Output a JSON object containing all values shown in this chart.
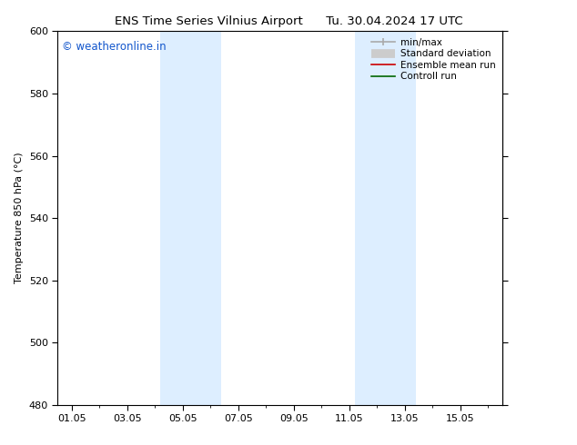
{
  "title_left": "ENS Time Series Vilnius Airport",
  "title_right": "Tu. 30.04.2024 17 UTC",
  "ylabel": "Temperature 850 hPa (°C)",
  "ylim": [
    480,
    600
  ],
  "yticks": [
    480,
    500,
    520,
    540,
    560,
    580,
    600
  ],
  "xtick_labels": [
    "01.05",
    "03.05",
    "05.05",
    "07.05",
    "09.05",
    "11.05",
    "13.05",
    "15.05"
  ],
  "xtick_positions": [
    0,
    2,
    4,
    6,
    8,
    10,
    12,
    14
  ],
  "xlim": [
    -0.5,
    15.5
  ],
  "shaded_bands": [
    {
      "x_start": 3.2,
      "x_end": 5.4
    },
    {
      "x_start": 10.2,
      "x_end": 12.4
    }
  ],
  "shaded_color": "#ddeeff",
  "watermark_text": "© weatheronline.in",
  "watermark_color": "#1155cc",
  "bg_color": "#ffffff",
  "plot_bg_color": "#ffffff",
  "legend_entries": [
    {
      "label": "min/max",
      "color": "#aaaaaa",
      "lw": 1.2,
      "style": "minmax"
    },
    {
      "label": "Standard deviation",
      "color": "#cccccc",
      "lw": 7,
      "style": "thick"
    },
    {
      "label": "Ensemble mean run",
      "color": "#cc0000",
      "lw": 1.2,
      "style": "line"
    },
    {
      "label": "Controll run",
      "color": "#006600",
      "lw": 1.2,
      "style": "line"
    }
  ],
  "spine_color": "#000000",
  "tick_fontsize": 8,
  "ylabel_fontsize": 8,
  "title_fontsize": 9.5,
  "watermark_fontsize": 8.5
}
